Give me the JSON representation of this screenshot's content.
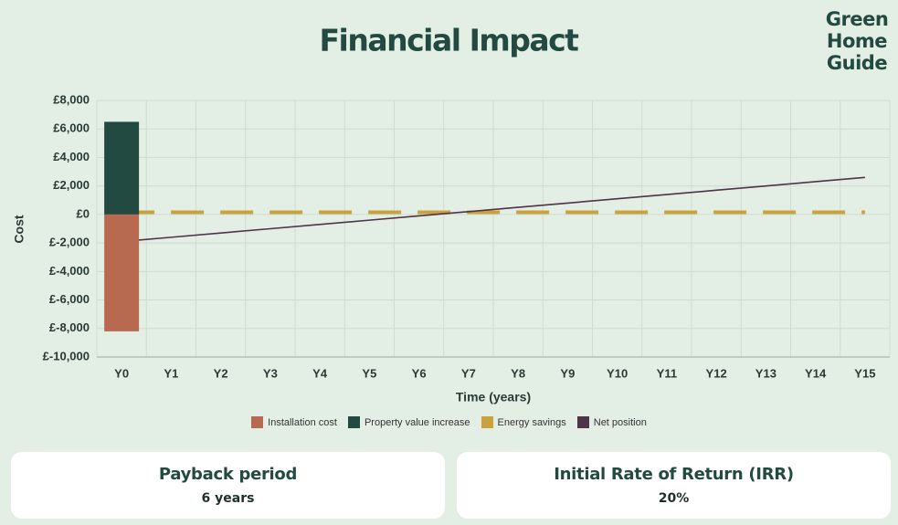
{
  "chart_data": {
    "type": "combo",
    "title": "Financial Impact",
    "logo": [
      "Green",
      "Home",
      "Guide"
    ],
    "y_label": "Cost",
    "x_label": "Time (years)",
    "categories": [
      "Y0",
      "Y1",
      "Y2",
      "Y3",
      "Y4",
      "Y5",
      "Y6",
      "Y7",
      "Y8",
      "Y9",
      "Y10",
      "Y11",
      "Y12",
      "Y13",
      "Y14",
      "Y15"
    ],
    "ylim": [
      -10000,
      8000
    ],
    "yticks": [
      {
        "value": -10000,
        "label": "£-10,000"
      },
      {
        "value": -8000,
        "label": "£-8,000"
      },
      {
        "value": -6000,
        "label": "£-6,000"
      },
      {
        "value": -4000,
        "label": "£-4,000"
      },
      {
        "value": -2000,
        "label": "£-2,000"
      },
      {
        "value": 0,
        "label": "£0"
      },
      {
        "value": 2000,
        "label": "£2,000"
      },
      {
        "value": 4000,
        "label": "£4,000"
      },
      {
        "value": 6000,
        "label": "£6,000"
      },
      {
        "value": 8000,
        "label": "£8,000"
      }
    ],
    "grid": true,
    "series": [
      {
        "name": "Installation cost",
        "type": "bar",
        "color": "#b86a50",
        "values": [
          -8200,
          null,
          null,
          null,
          null,
          null,
          null,
          null,
          null,
          null,
          null,
          null,
          null,
          null,
          null,
          null
        ]
      },
      {
        "name": "Property value increase",
        "type": "bar",
        "color": "#234a40",
        "values": [
          6500,
          null,
          null,
          null,
          null,
          null,
          null,
          null,
          null,
          null,
          null,
          null,
          null,
          null,
          null,
          null
        ]
      },
      {
        "name": "Energy savings",
        "type": "line",
        "dashed": true,
        "color": "#c9a23c",
        "values": [
          150,
          150,
          150,
          150,
          150,
          150,
          150,
          150,
          150,
          150,
          150,
          150,
          150,
          150,
          150,
          150
        ]
      },
      {
        "name": "Net position",
        "type": "line",
        "dashed": false,
        "color": "#4f3347",
        "values": [
          -1900,
          -1600,
          -1300,
          -1000,
          -700,
          -400,
          -100,
          200,
          500,
          800,
          1100,
          1400,
          1700,
          2000,
          2300,
          2600
        ]
      }
    ]
  },
  "cards": [
    {
      "title": "Payback period",
      "value": "6 years"
    },
    {
      "title": "Initial Rate of Return (IRR)",
      "value": "20%"
    }
  ]
}
